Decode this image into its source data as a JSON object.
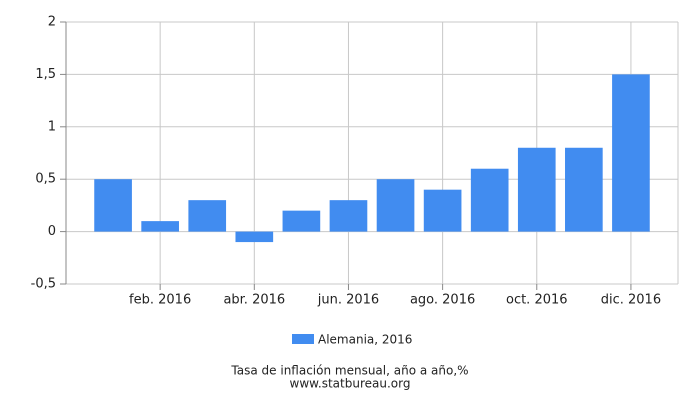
{
  "chart_data": {
    "type": "bar",
    "categories": [
      null,
      "feb. 2016",
      null,
      "abr. 2016",
      null,
      "jun. 2016",
      null,
      "ago. 2016",
      null,
      "oct. 2016",
      null,
      "dic. 2016"
    ],
    "series": [
      {
        "name": "Alemania, 2016",
        "color": "#418cf0",
        "values": [
          0.5,
          0.1,
          0.3,
          -0.1,
          0.2,
          0.3,
          0.5,
          0.4,
          0.6,
          0.8,
          0.8,
          1.5
        ]
      }
    ],
    "ylim": [
      -0.5,
      2
    ],
    "yticks": [
      {
        "value": -0.5,
        "label": "-0,5"
      },
      0,
      {
        "value": 0.5,
        "label": "0,5"
      },
      1,
      {
        "value": 1.5,
        "label": "1,5"
      },
      2
    ],
    "grid": true,
    "legend": "bottom",
    "title": "Tasa de inflación mensual, año a año,%",
    "source": "www.statbureau.org"
  }
}
